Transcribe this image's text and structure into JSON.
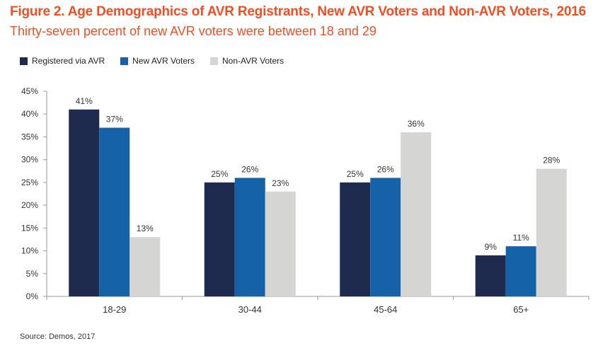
{
  "title": "Figure 2. Age Demographics of AVR Registrants, New AVR Voters and Non-AVR Voters, 2016",
  "subtitle": "Thirty-seven percent of new AVR voters were between 18 and 29",
  "source": "Source: Demos, 2017",
  "chart_data": {
    "type": "bar",
    "categories": [
      "18-29",
      "30-44",
      "45-64",
      "65+"
    ],
    "series": [
      {
        "name": "Registered via AVR",
        "values": [
          41,
          25,
          25,
          9
        ],
        "labels": [
          "41%",
          "25%",
          "25%",
          "9%"
        ],
        "color": "#1e2b4f"
      },
      {
        "name": "New AVR Voters",
        "values": [
          37,
          26,
          26,
          11
        ],
        "labels": [
          "37%",
          "26%",
          "26%",
          "11%"
        ],
        "color": "#1562a8"
      },
      {
        "name": "Non-AVR Voters",
        "values": [
          13,
          23,
          36,
          28
        ],
        "labels": [
          "13%",
          "23%",
          "36%",
          "28%"
        ],
        "color": "#d5d6d4"
      }
    ],
    "yticks": [
      "0%",
      "5%",
      "10%",
      "15%",
      "20%",
      "25%",
      "30%",
      "35%",
      "40%",
      "45%"
    ],
    "ylim": [
      0,
      45
    ],
    "grid": false,
    "legend": "top-left"
  }
}
